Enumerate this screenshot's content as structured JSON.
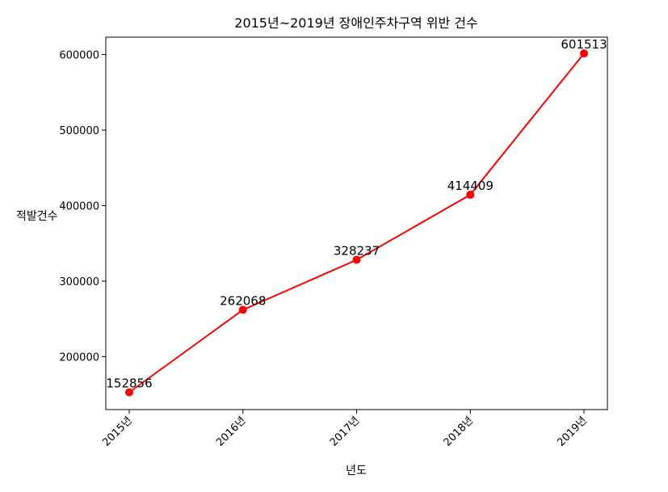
{
  "chart_data": {
    "type": "line",
    "title": "2015년~2019년 장애인주차구역 위반 건수",
    "xlabel": "년도",
    "ylabel": "적발건수",
    "categories": [
      "2015년",
      "2016년",
      "2017년",
      "2018년",
      "2019년"
    ],
    "series": [
      {
        "values": [
          152856,
          262068,
          328237,
          414409,
          601513
        ],
        "color": "#ff0000",
        "marker": "circle"
      }
    ],
    "yticks": [
      200000,
      300000,
      400000,
      500000,
      600000
    ],
    "ylim": [
      130000,
      623000
    ],
    "grid": false,
    "legend": "none",
    "xtick_rotation": 45
  }
}
